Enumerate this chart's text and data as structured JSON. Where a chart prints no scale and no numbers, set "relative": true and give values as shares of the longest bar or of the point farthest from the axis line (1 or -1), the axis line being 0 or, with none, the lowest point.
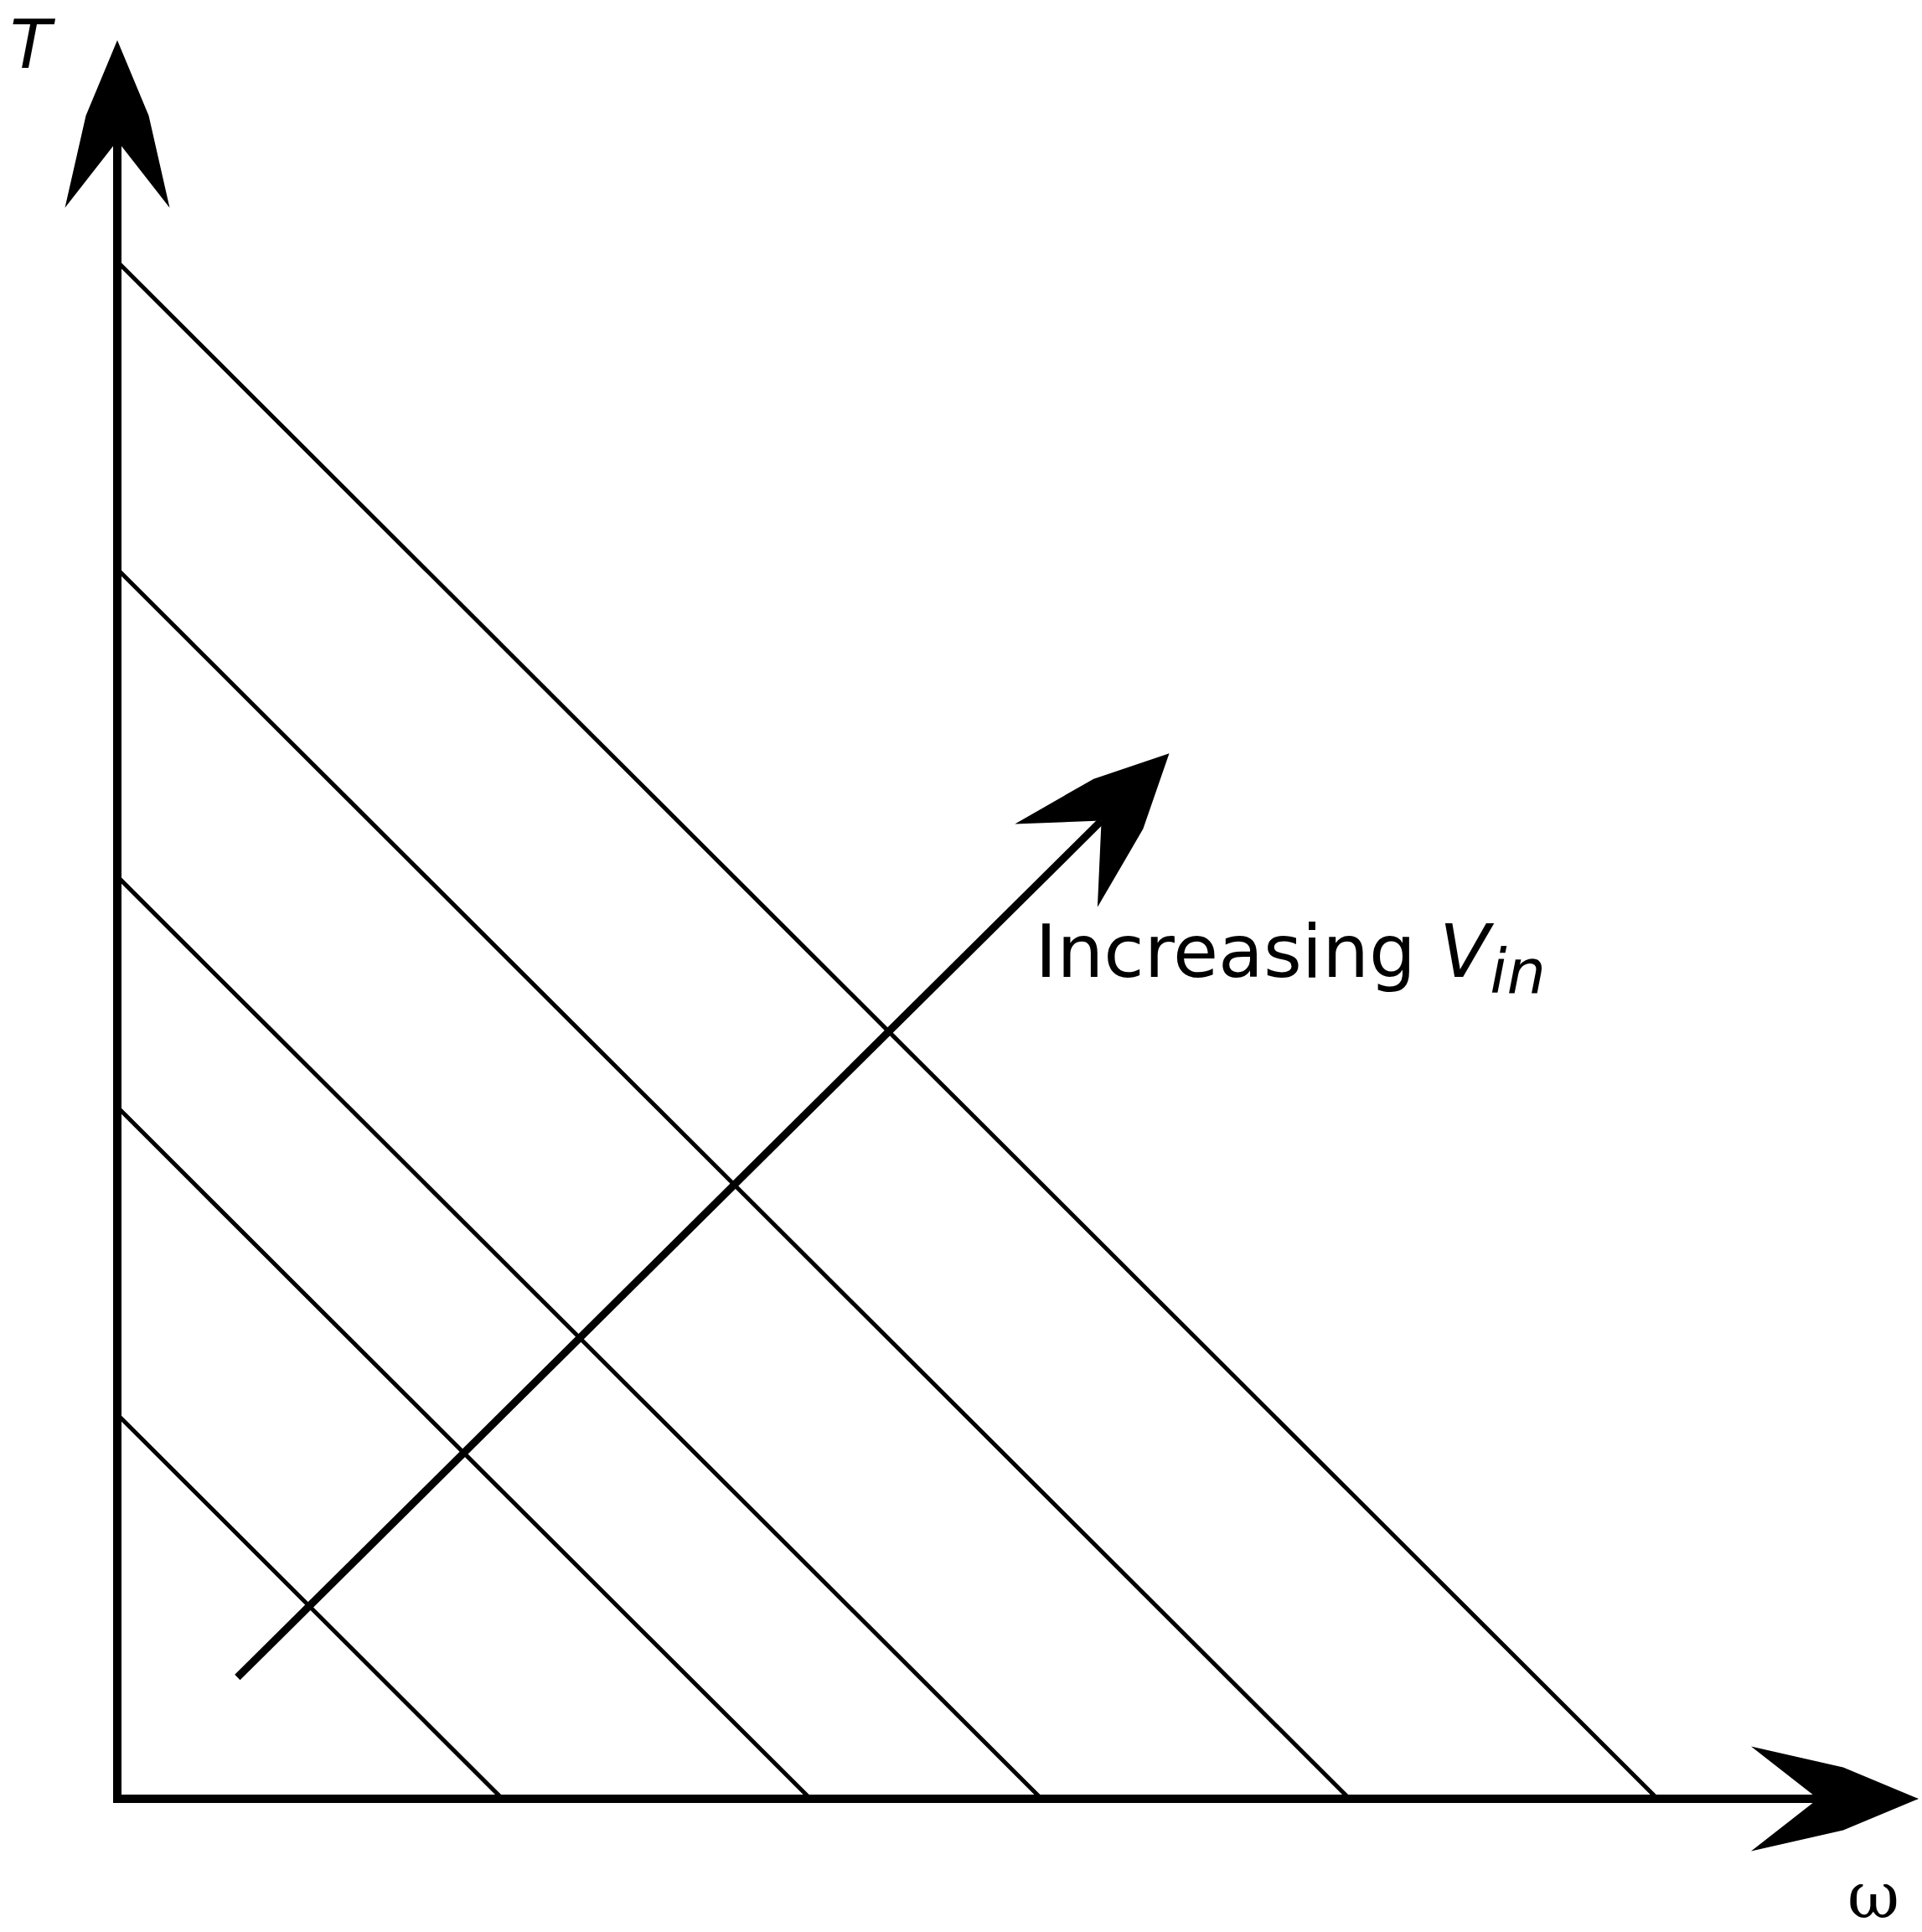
{
  "chart_data": {
    "type": "line",
    "relative": true,
    "xlabel": "ω",
    "ylabel": "T",
    "annotations": [
      "Increasing V$_{in}$"
    ],
    "marker": "none",
    "legend": false,
    "categories": [
      null,
      null,
      null,
      null,
      null,
      null,
      null,
      null,
      null,
      null,
      null,
      null,
      null,
      null,
      null,
      null,
      null,
      null,
      null,
      null,
      null,
      null,
      null,
      null
    ],
    "series": [
      {
        "color": "#000000",
        "values": [
          0.25,
          0.2,
          0.15,
          0.1,
          0.05,
          0,
          null,
          null,
          null,
          null,
          null,
          null,
          null,
          null,
          null,
          null,
          null,
          null,
          null,
          null,
          null,
          null,
          null,
          null
        ]
      },
      {
        "color": "#000000",
        "values": [
          0.45,
          0.4,
          0.35,
          0.3,
          0.25,
          0.2,
          0.15,
          0.1,
          0.05,
          0,
          null,
          null,
          null,
          null,
          null,
          null,
          null,
          null,
          null,
          null,
          null,
          null,
          null,
          null
        ]
      },
      {
        "color": "#000000",
        "values": [
          0.6,
          0.55,
          0.5,
          0.45,
          0.4,
          0.35,
          0.3,
          0.25,
          0.2,
          0.15,
          0.1,
          0.05,
          0,
          null,
          null,
          null,
          null,
          null,
          null,
          null,
          null,
          null,
          null,
          null
        ]
      },
      {
        "color": "#000000",
        "values": [
          0.8,
          0.75,
          0.7,
          0.65,
          0.6,
          0.55,
          0.5,
          0.45,
          0.4,
          0.35,
          0.3,
          0.25,
          0.2,
          0.15,
          0.1,
          0.05,
          0,
          null,
          null,
          null,
          null,
          null,
          null,
          null
        ]
      },
      {
        "color": "#000000",
        "values": [
          1,
          0.95,
          0.9,
          0.85,
          0.8,
          0.75,
          0.7,
          0.65,
          0.6,
          0.55,
          0.5,
          0.45,
          0.4,
          0.35,
          0.3,
          0.25,
          0.2,
          0.15,
          0.1,
          0.05,
          0,
          null,
          null,
          null
        ]
      }
    ]
  }
}
